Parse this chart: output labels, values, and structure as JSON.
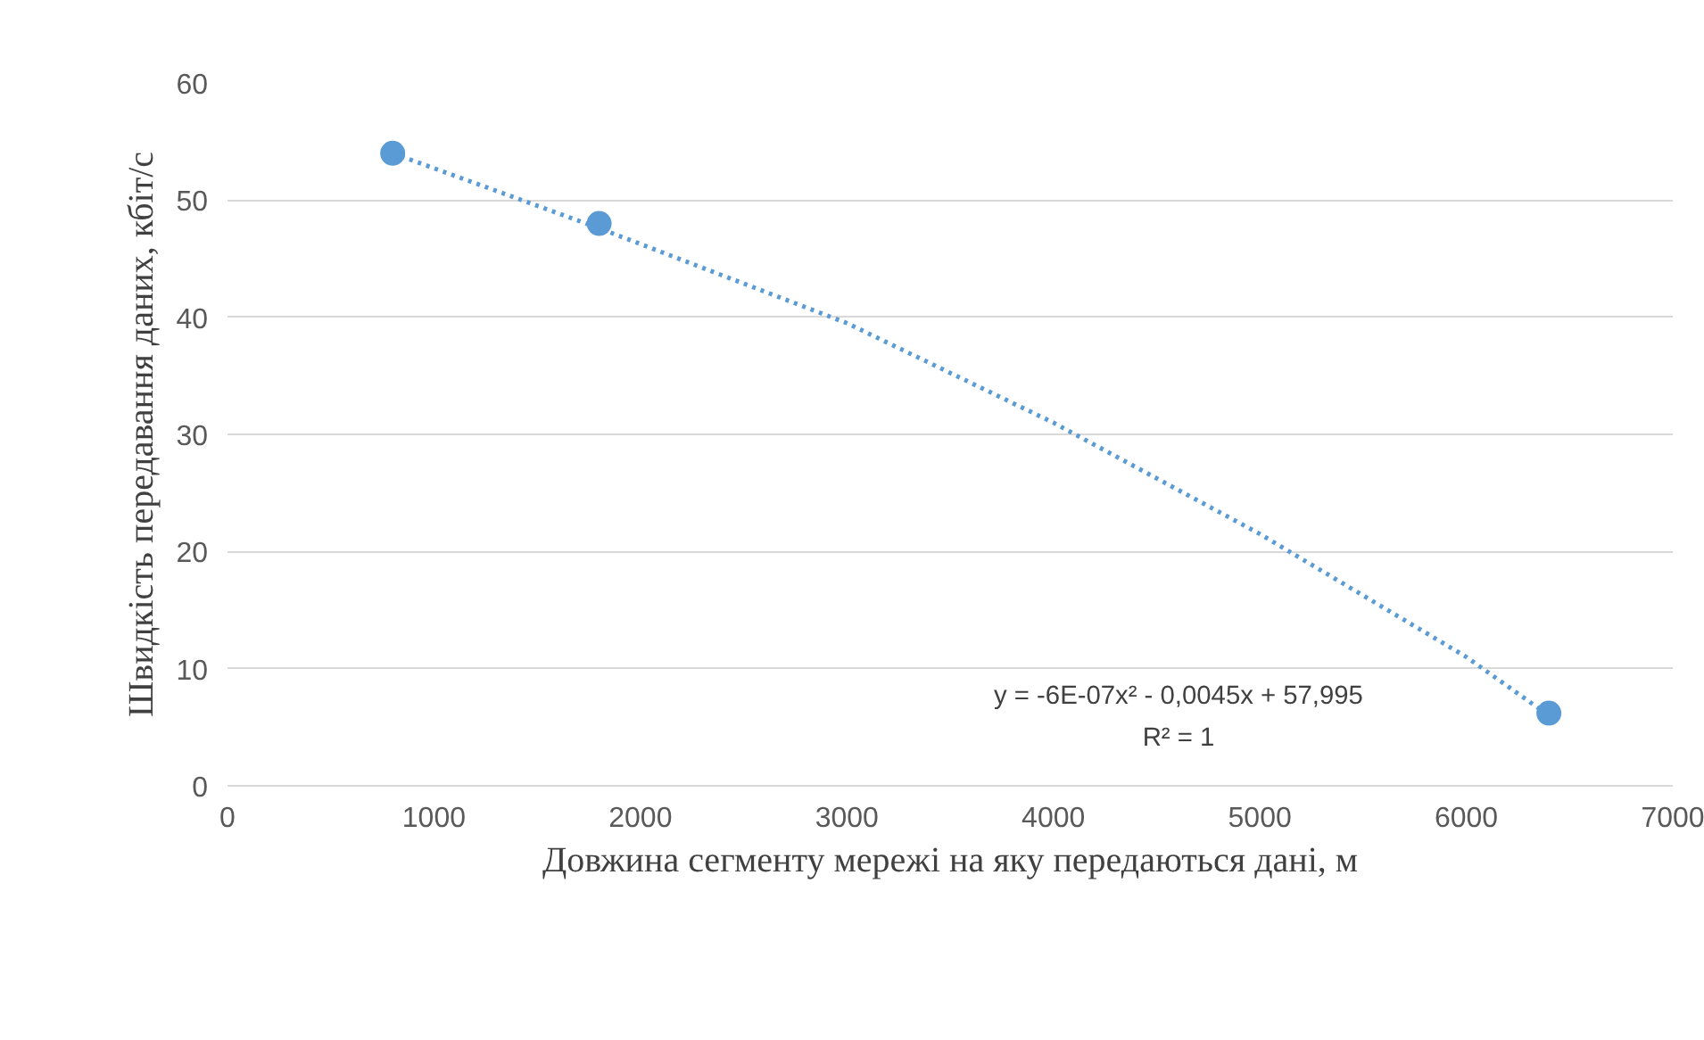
{
  "chart_data": {
    "type": "scatter",
    "xlabel": "Довжина сегменту мережі на яку передаються дані, м",
    "ylabel": "Швидкість передавання даних, кбіт/с",
    "xlim": [
      0,
      7000
    ],
    "xticks": [
      0,
      1000,
      2000,
      3000,
      4000,
      5000,
      6000,
      7000
    ],
    "ylim": [
      0,
      60
    ],
    "yticks": [
      0,
      10,
      20,
      30,
      40,
      50,
      60
    ],
    "grid": "y",
    "marker": "circle",
    "series": [
      {
        "color": "#5b9bd5",
        "x": [
          800,
          1800,
          6400
        ],
        "values": [
          54,
          48,
          6.2
        ]
      },
      {
        "type": "line",
        "color": "#5b9bd5",
        "line_style": "dotted",
        "marker": "none",
        "x": [
          800,
          1800,
          3000,
          4000,
          5000,
          6000,
          6400
        ],
        "values": [
          54,
          47.6,
          39.5,
          31,
          21.5,
          11,
          6
        ]
      }
    ],
    "annotations": [
      "y = -6E-07x² - 0,0045x + 57,995",
      "R² = 1"
    ]
  }
}
